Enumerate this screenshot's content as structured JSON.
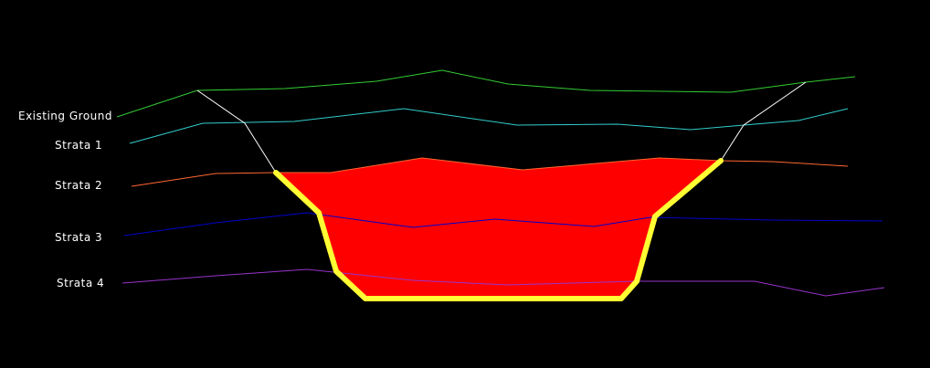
{
  "labels": {
    "existing_ground": "Existing Ground",
    "strata_1": "Strata 1",
    "strata_2": "Strata 2",
    "strata_3": "Strata 3",
    "strata_4": "Strata 4"
  },
  "colors": {
    "background": "#000000",
    "existing_ground": "#33cc33",
    "strata_1": "#33cccc",
    "strata_2": "#ff6633",
    "strata_3": "#0000cc",
    "strata_4": "#9933cc",
    "excavation_fill": "#ff0000",
    "excavation_outline": "#ffff33",
    "batter_lines": "#ffffff"
  }
}
